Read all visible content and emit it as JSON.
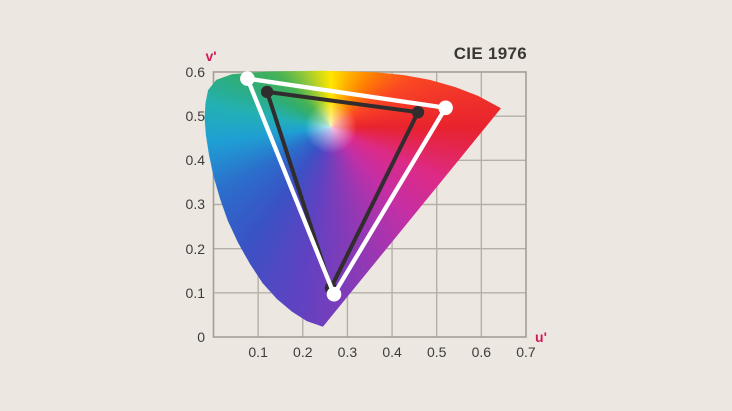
{
  "title": "CIE 1976",
  "axis": {
    "x_label": "u'",
    "y_label": "v'"
  },
  "colors": {
    "background": "#ece8e1",
    "grid_line": "#b4b0a8",
    "frame": "#a39f97",
    "tick_text": "#3f3c38",
    "title_text": "#3a3735",
    "axis_label": "#d31a58",
    "wide_gamut": "#ffffff",
    "standard_gamut": "#312d2e"
  },
  "chart_data": {
    "type": "area",
    "title": "CIE 1976",
    "subtitle": "",
    "xlabel": "u'",
    "ylabel": "v'",
    "xlim": [
      0,
      0.7
    ],
    "ylim": [
      0,
      0.6
    ],
    "grid": true,
    "x_ticks": [
      0.1,
      0.2,
      0.3,
      0.4,
      0.5,
      0.6,
      0.7
    ],
    "x_tick_labels": [
      "0.1",
      "0.2",
      "0.3",
      "0.4",
      "0.5",
      "0.6",
      "0.7"
    ],
    "y_ticks": [
      0,
      0.1,
      0.2,
      0.3,
      0.4,
      0.5,
      0.6
    ],
    "y_tick_labels": [
      "0",
      "0.1",
      "0.2",
      "0.3",
      "0.4",
      "0.5",
      "0.6"
    ],
    "white_point": [
      0.263,
      0.475
    ],
    "series": [
      {
        "name": "wide-gamut-triangle",
        "color": "#ffffff",
        "marker": "circle",
        "closed": true,
        "points": [
          [
            0.076,
            0.585
          ],
          [
            0.52,
            0.519
          ],
          [
            0.27,
            0.097
          ]
        ]
      },
      {
        "name": "standard-gamut-triangle",
        "color": "#312d2e",
        "marker": "circle",
        "closed": true,
        "points": [
          [
            0.12,
            0.555
          ],
          [
            0.458,
            0.509
          ],
          [
            0.263,
            0.111
          ]
        ]
      }
    ],
    "spectral_locus_outline": [
      [
        0.041,
        0.595
      ],
      [
        0.006,
        0.582
      ],
      [
        -0.012,
        0.559
      ],
      [
        -0.018,
        0.53
      ],
      [
        -0.02,
        0.496
      ],
      [
        -0.017,
        0.457
      ],
      [
        -0.01,
        0.412
      ],
      [
        0.0,
        0.364
      ],
      [
        0.015,
        0.312
      ],
      [
        0.032,
        0.263
      ],
      [
        0.055,
        0.213
      ],
      [
        0.082,
        0.165
      ],
      [
        0.11,
        0.122
      ],
      [
        0.142,
        0.086
      ],
      [
        0.176,
        0.057
      ],
      [
        0.209,
        0.036
      ],
      [
        0.245,
        0.023
      ],
      [
        0.644,
        0.518
      ],
      [
        0.592,
        0.546
      ],
      [
        0.541,
        0.566
      ],
      [
        0.485,
        0.582
      ],
      [
        0.427,
        0.593
      ],
      [
        0.366,
        0.599
      ],
      [
        0.306,
        0.601
      ],
      [
        0.243,
        0.603
      ],
      [
        0.182,
        0.602
      ],
      [
        0.122,
        0.601
      ],
      [
        0.077,
        0.598
      ]
    ],
    "locus_conic_stops": [
      [
        0,
        "#ffe600"
      ],
      [
        18,
        "#ffb400"
      ],
      [
        38,
        "#ff8000"
      ],
      [
        60,
        "#fb4724"
      ],
      [
        90,
        "#e8232e"
      ],
      [
        115,
        "#dd2a86"
      ],
      [
        140,
        "#c42fa5"
      ],
      [
        165,
        "#9338b4"
      ],
      [
        190,
        "#6042c1"
      ],
      [
        215,
        "#3a52c4"
      ],
      [
        240,
        "#2b6ecb"
      ],
      [
        263,
        "#1f9fd4"
      ],
      [
        280,
        "#23b0b4"
      ],
      [
        298,
        "#2fad74"
      ],
      [
        315,
        "#46b254"
      ],
      [
        332,
        "#8ec73a"
      ],
      [
        348,
        "#d3da17"
      ],
      [
        360,
        "#ffe600"
      ]
    ]
  }
}
